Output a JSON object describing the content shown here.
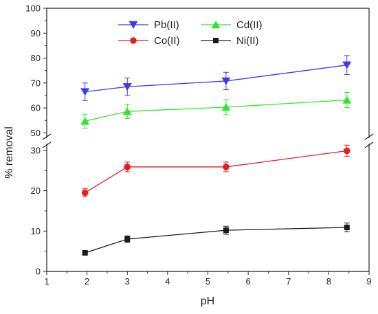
{
  "chart_data": {
    "type": "line",
    "xlabel": "pH",
    "ylabel": "% removal",
    "xlim": [
      1,
      9
    ],
    "x_ticks": [
      "1",
      "2",
      "3",
      "4",
      "5",
      "6",
      "7",
      "8",
      "9"
    ],
    "y_axis_break": true,
    "y_lower": {
      "range": [
        0,
        31
      ],
      "ticks": [
        "0",
        "10",
        "20",
        "30"
      ]
    },
    "y_upper": {
      "range": [
        49,
        100
      ],
      "ticks": [
        "50",
        "60",
        "70",
        "80",
        "90",
        "100"
      ]
    },
    "legend_placement": "top-center",
    "series": [
      {
        "name": "Pb(II)",
        "color": "#3a3af0",
        "marker": "triangle-down",
        "x": [
          1.95,
          3.0,
          5.45,
          8.45
        ],
        "y": [
          66.5,
          68.5,
          70.8,
          77.2
        ],
        "err": [
          3.5,
          3.5,
          3.5,
          3.8
        ]
      },
      {
        "name": "Cd(II)",
        "color": "#2ee62e",
        "marker": "triangle-up",
        "x": [
          1.95,
          3.0,
          5.45,
          8.45
        ],
        "y": [
          54.7,
          58.6,
          60.3,
          63.2
        ],
        "err": [
          2.8,
          2.8,
          3.0,
          3.0
        ]
      },
      {
        "name": "Co(II)",
        "color": "#e41f1f",
        "marker": "circle",
        "x": [
          1.95,
          3.0,
          5.45,
          8.45
        ],
        "y": [
          19.5,
          25.9,
          25.9,
          29.9
        ],
        "err": [
          1.0,
          1.2,
          1.2,
          1.4
        ]
      },
      {
        "name": "Ni(II)",
        "color": "#1a1a1a",
        "marker": "square",
        "x": [
          1.95,
          3.0,
          5.45,
          8.45
        ],
        "y": [
          4.6,
          8.0,
          10.2,
          10.9
        ],
        "err": [
          0.4,
          0.8,
          1.0,
          1.1
        ]
      }
    ]
  }
}
